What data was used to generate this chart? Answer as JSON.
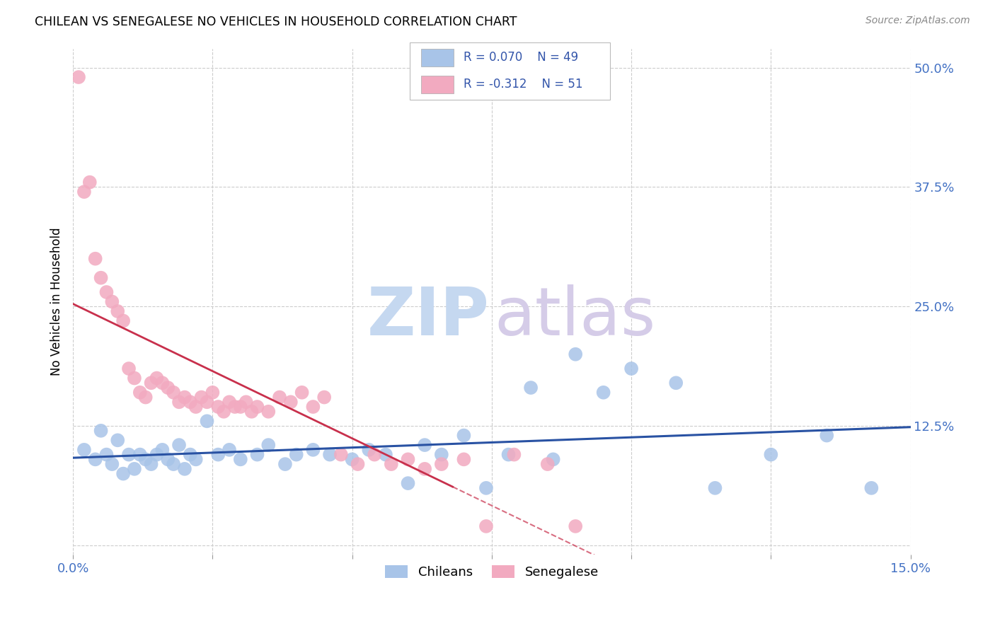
{
  "title": "CHILEAN VS SENEGALESE NO VEHICLES IN HOUSEHOLD CORRELATION CHART",
  "source": "Source: ZipAtlas.com",
  "ylabel": "No Vehicles in Household",
  "xlim": [
    0.0,
    0.15
  ],
  "ylim": [
    -0.01,
    0.52
  ],
  "yticks": [
    0.0,
    0.125,
    0.25,
    0.375,
    0.5
  ],
  "yticklabels": [
    "",
    "12.5%",
    "25.0%",
    "37.5%",
    "50.0%"
  ],
  "xtick_positions": [
    0.0,
    0.025,
    0.05,
    0.075,
    0.1,
    0.125,
    0.15
  ],
  "xticklabels_show": [
    "0.0%",
    "",
    "",
    "",
    "",
    "",
    "15.0%"
  ],
  "chilean_R": "0.070",
  "chilean_N": "49",
  "senegalese_R": "-0.312",
  "senegalese_N": "51",
  "chilean_color": "#a8c4e8",
  "senegalese_color": "#f2aac0",
  "chilean_line_color": "#2952a3",
  "senegalese_line_color": "#c8304c",
  "watermark_zip_color": "#c5d8f0",
  "watermark_atlas_color": "#d5cce8",
  "chilean_x": [
    0.002,
    0.004,
    0.005,
    0.006,
    0.007,
    0.008,
    0.009,
    0.01,
    0.011,
    0.012,
    0.013,
    0.014,
    0.015,
    0.016,
    0.017,
    0.018,
    0.019,
    0.02,
    0.021,
    0.022,
    0.024,
    0.026,
    0.028,
    0.03,
    0.033,
    0.035,
    0.038,
    0.04,
    0.043,
    0.046,
    0.05,
    0.053,
    0.056,
    0.06,
    0.063,
    0.066,
    0.07,
    0.074,
    0.078,
    0.082,
    0.086,
    0.09,
    0.095,
    0.1,
    0.108,
    0.115,
    0.125,
    0.135,
    0.143
  ],
  "chilean_y": [
    0.1,
    0.09,
    0.12,
    0.095,
    0.085,
    0.11,
    0.075,
    0.095,
    0.08,
    0.095,
    0.09,
    0.085,
    0.095,
    0.1,
    0.09,
    0.085,
    0.105,
    0.08,
    0.095,
    0.09,
    0.13,
    0.095,
    0.1,
    0.09,
    0.095,
    0.105,
    0.085,
    0.095,
    0.1,
    0.095,
    0.09,
    0.1,
    0.095,
    0.065,
    0.105,
    0.095,
    0.115,
    0.06,
    0.095,
    0.165,
    0.09,
    0.2,
    0.16,
    0.185,
    0.17,
    0.06,
    0.095,
    0.115,
    0.06
  ],
  "senegalese_x": [
    0.001,
    0.002,
    0.003,
    0.004,
    0.005,
    0.006,
    0.007,
    0.008,
    0.009,
    0.01,
    0.011,
    0.012,
    0.013,
    0.014,
    0.015,
    0.016,
    0.017,
    0.018,
    0.019,
    0.02,
    0.021,
    0.022,
    0.023,
    0.024,
    0.025,
    0.026,
    0.027,
    0.028,
    0.029,
    0.03,
    0.031,
    0.032,
    0.033,
    0.035,
    0.037,
    0.039,
    0.041,
    0.043,
    0.045,
    0.048,
    0.051,
    0.054,
    0.057,
    0.06,
    0.063,
    0.066,
    0.07,
    0.074,
    0.079,
    0.085,
    0.09
  ],
  "senegalese_y": [
    0.49,
    0.37,
    0.38,
    0.3,
    0.28,
    0.265,
    0.255,
    0.245,
    0.235,
    0.185,
    0.175,
    0.16,
    0.155,
    0.17,
    0.175,
    0.17,
    0.165,
    0.16,
    0.15,
    0.155,
    0.15,
    0.145,
    0.155,
    0.15,
    0.16,
    0.145,
    0.14,
    0.15,
    0.145,
    0.145,
    0.15,
    0.14,
    0.145,
    0.14,
    0.155,
    0.15,
    0.16,
    0.145,
    0.155,
    0.095,
    0.085,
    0.095,
    0.085,
    0.09,
    0.08,
    0.085,
    0.09,
    0.02,
    0.095,
    0.085,
    0.02
  ],
  "sen_line_solid_end": 0.068,
  "sen_line_dashed_end": 0.105
}
